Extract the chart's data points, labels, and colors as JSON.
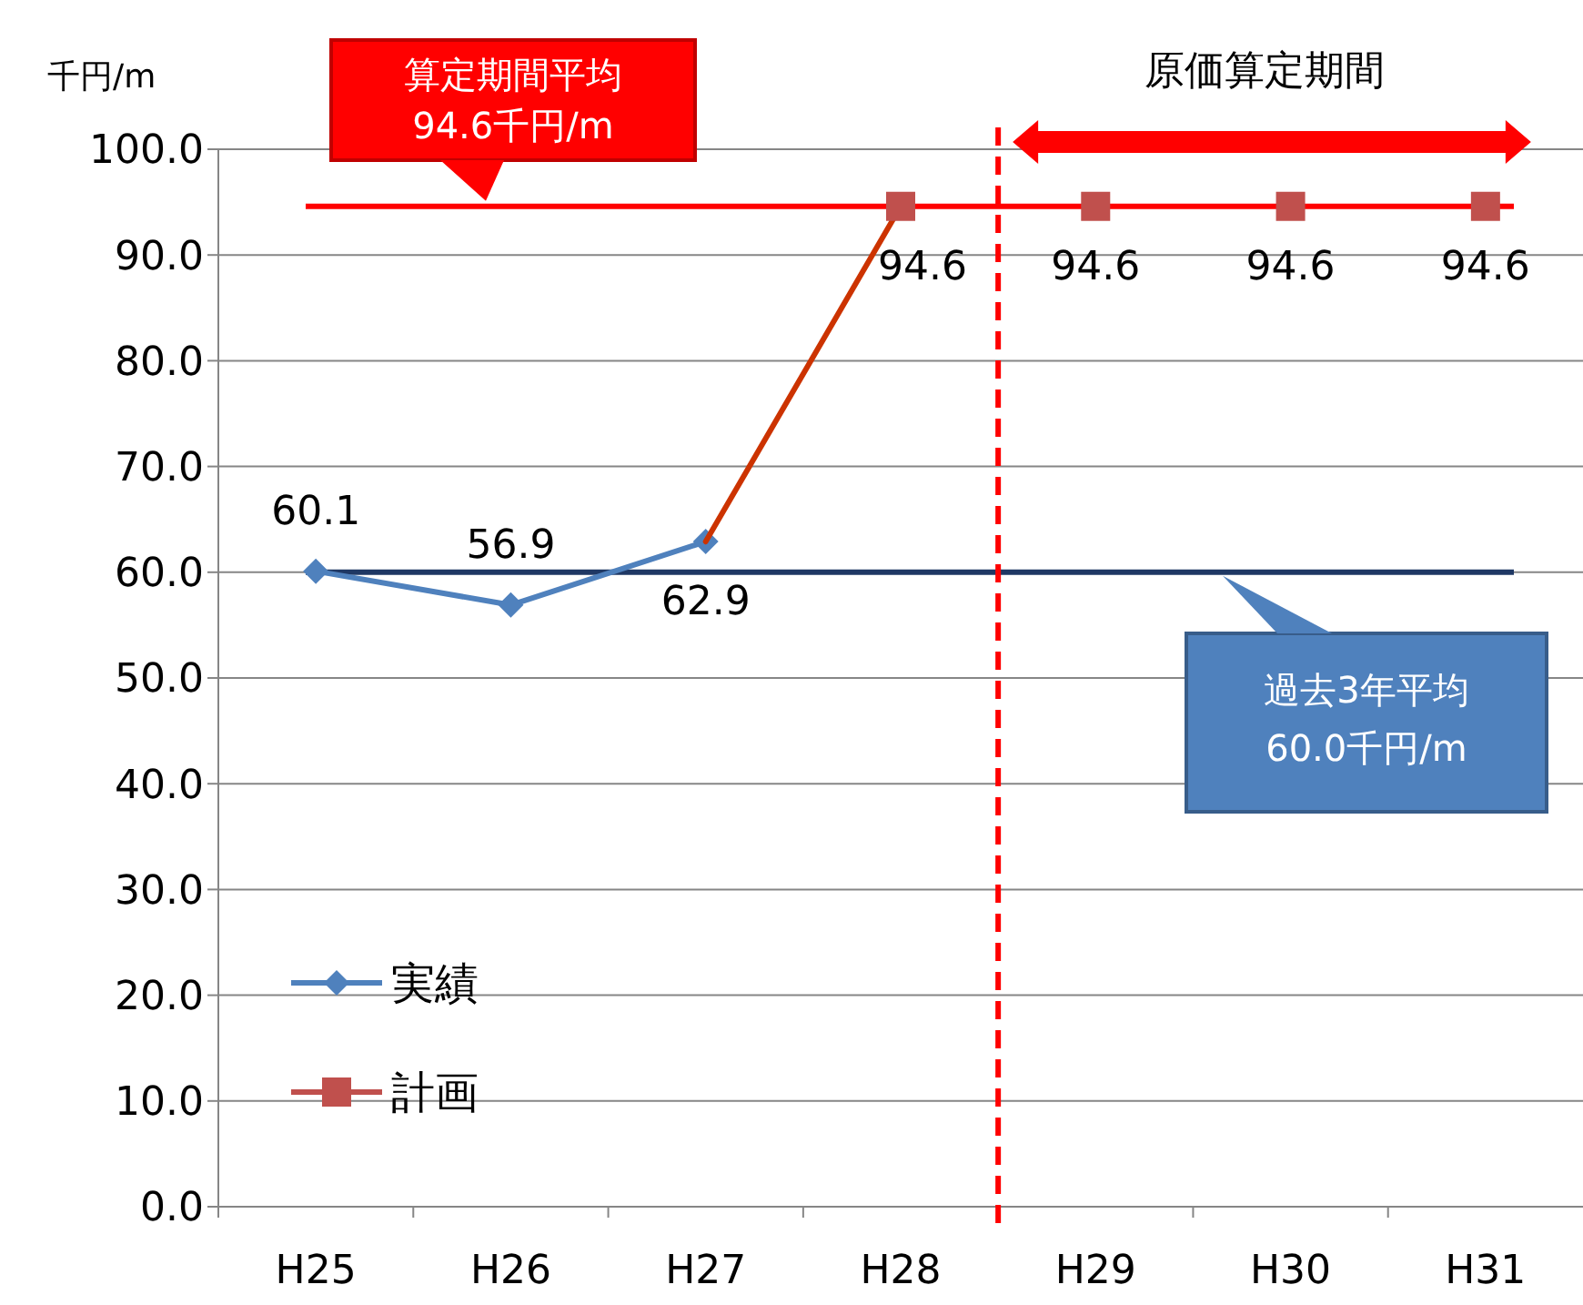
{
  "chart_data": {
    "type": "line",
    "ylabel": "千円/m",
    "categories": [
      "H25",
      "H26",
      "H27",
      "H28",
      "H29",
      "H30",
      "H31"
    ],
    "series": [
      {
        "name": "実績",
        "color": "#4f81bd",
        "marker": "diamond",
        "values": [
          60.1,
          56.9,
          62.9,
          null,
          null,
          null,
          null
        ],
        "value_labels": [
          "60.1",
          "56.9",
          "62.9",
          null,
          null,
          null,
          null
        ]
      },
      {
        "type": "line",
        "color": "#cc3300",
        "marker": "none",
        "values": [
          null,
          null,
          62.9,
          94.6,
          null,
          null,
          null
        ]
      },
      {
        "name": "計画",
        "type": "scatter",
        "color": "#c0504d",
        "marker": "square",
        "values": [
          null,
          null,
          null,
          94.6,
          94.6,
          94.6,
          94.6
        ],
        "value_labels": [
          null,
          null,
          null,
          "94.6",
          "94.6",
          "94.6",
          "94.6"
        ]
      }
    ],
    "ylim": [
      0,
      100
    ],
    "yticks": [
      {
        "value": 0,
        "label": "0.0"
      },
      {
        "value": 10,
        "label": "10.0"
      },
      {
        "value": 20,
        "label": "20.0"
      },
      {
        "value": 30,
        "label": "30.0"
      },
      {
        "value": 40,
        "label": "40.0"
      },
      {
        "value": 50,
        "label": "50.0"
      },
      {
        "value": 60,
        "label": "60.0"
      },
      {
        "value": 70,
        "label": "70.0"
      },
      {
        "value": 80,
        "label": "80.0"
      },
      {
        "value": 90,
        "label": "90.0"
      },
      {
        "value": 100,
        "label": "100.0"
      }
    ],
    "ref_lines": [
      {
        "axis": "y",
        "value": 94.6,
        "label": "算定期間平均\n94.6千円/m",
        "color": "#ff0000"
      },
      {
        "axis": "y",
        "value": 60.0,
        "label": "過去3年平均\n60.0千円/m",
        "color": "#1f3864"
      },
      {
        "axis": "x",
        "value": "H29",
        "color": "#ff0000",
        "line_style": "dashed"
      }
    ],
    "annotations": [
      "原価算定期間"
    ],
    "grid": "y",
    "legend": "bottom left"
  }
}
